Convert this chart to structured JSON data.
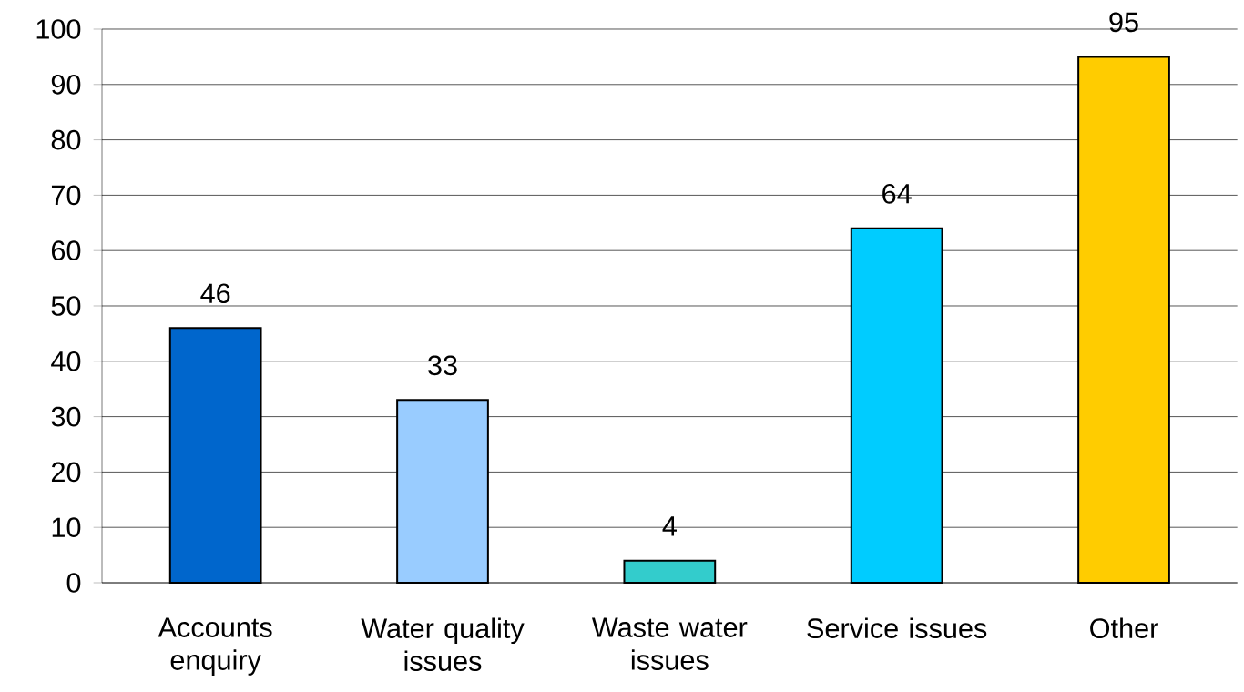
{
  "chart_data": {
    "type": "bar",
    "categories": [
      "Accounts enquiry",
      "Water quality issues",
      "Waste water issues",
      "Service issues",
      "Other"
    ],
    "values": [
      46,
      33,
      4,
      64,
      95
    ],
    "colors": [
      "#0066cc",
      "#99ccff",
      "#33cccc",
      "#00ccff",
      "#ffcc00"
    ],
    "ylim": [
      0,
      100
    ],
    "yticks": [
      0,
      10,
      20,
      30,
      40,
      50,
      60,
      70,
      80,
      90,
      100
    ],
    "grid": "y",
    "data_labels": true
  }
}
